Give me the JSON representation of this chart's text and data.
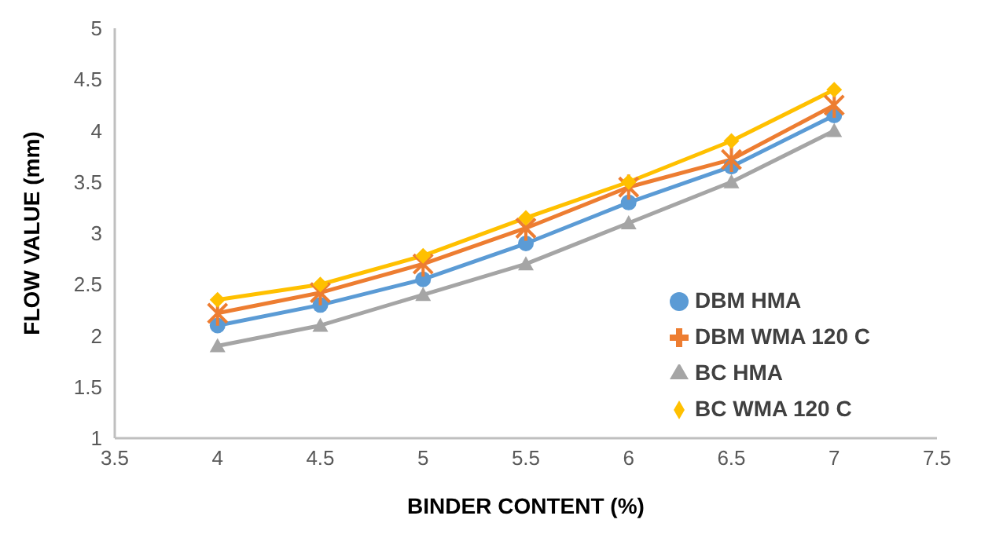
{
  "chart_data": {
    "type": "line",
    "xlabel": "BINDER CONTENT (%)",
    "ylabel": "FLOW VALUE (mm)",
    "x": [
      4,
      4.5,
      5,
      5.5,
      6,
      6.5,
      7
    ],
    "series": [
      {
        "name": "DBM HMA",
        "color": "#5b9bd5",
        "marker": "circle",
        "values": [
          2.1,
          2.3,
          2.55,
          2.9,
          3.3,
          3.65,
          4.15
        ]
      },
      {
        "name": "DBM WMA 120 C",
        "color": "#ed7d31",
        "marker": "cross",
        "values": [
          2.22,
          2.42,
          2.7,
          3.05,
          3.45,
          3.72,
          4.25
        ]
      },
      {
        "name": "BC HMA",
        "color": "#a5a5a5",
        "marker": "triangle",
        "values": [
          1.9,
          2.1,
          2.4,
          2.7,
          3.1,
          3.5,
          4.0
        ]
      },
      {
        "name": "BC WMA 120 C",
        "color": "#ffc000",
        "marker": "diamond",
        "values": [
          2.35,
          2.5,
          2.78,
          3.15,
          3.5,
          3.9,
          4.4
        ]
      }
    ],
    "xlim": [
      3.5,
      7.5
    ],
    "xticks": [
      3.5,
      4,
      4.5,
      5,
      5.5,
      6,
      6.5,
      7,
      7.5
    ],
    "ylim": [
      1,
      5
    ],
    "yticks": [
      1,
      1.5,
      2,
      2.5,
      3,
      3.5,
      4,
      4.5,
      5
    ],
    "grid": false,
    "legend": "right"
  }
}
